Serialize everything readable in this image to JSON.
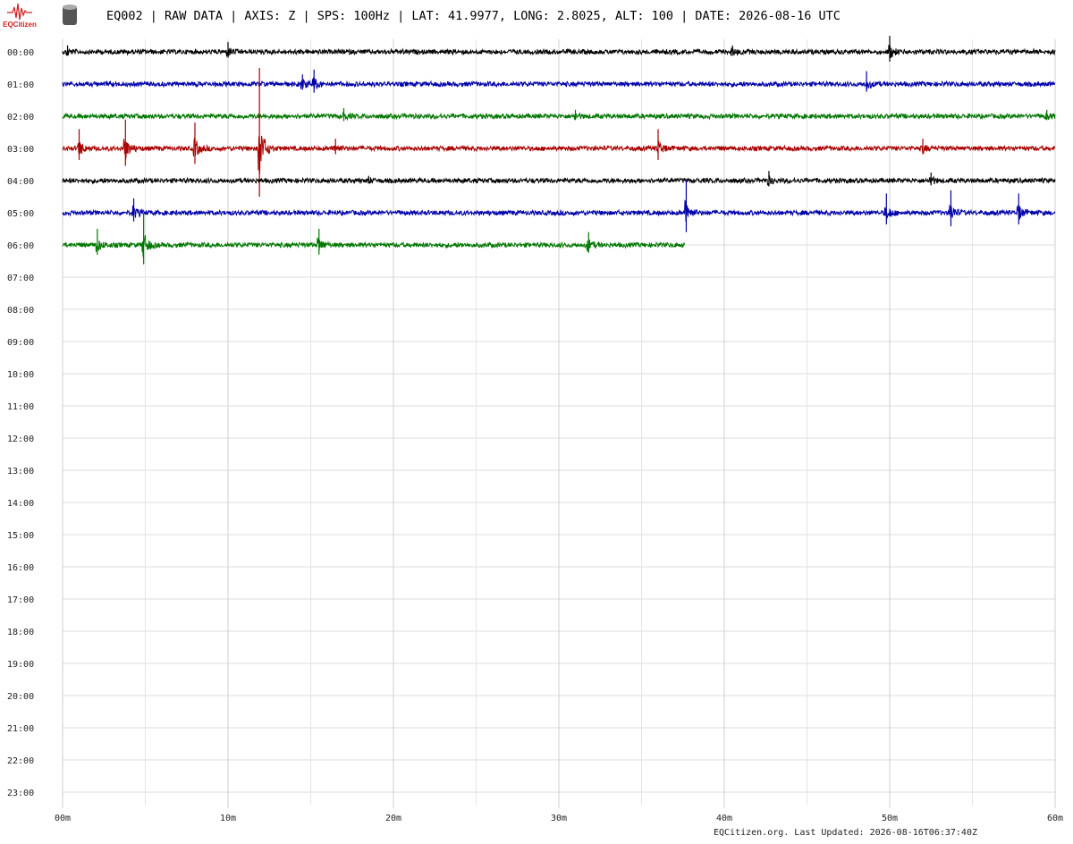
{
  "header": {
    "logo_text": "EQCitizen",
    "title": "EQ002 | RAW DATA | AXIS: Z | SPS: 100Hz | LAT: 41.9977, LONG: 2.8025, ALT: 100 | DATE: 2026-08-16 UTC"
  },
  "chart_data": {
    "type": "helicorder",
    "row_labels": [
      "00:00",
      "01:00",
      "02:00",
      "03:00",
      "04:00",
      "05:00",
      "06:00",
      "07:00",
      "08:00",
      "09:00",
      "10:00",
      "11:00",
      "12:00",
      "13:00",
      "14:00",
      "15:00",
      "16:00",
      "17:00",
      "18:00",
      "19:00",
      "20:00",
      "21:00",
      "22:00",
      "23:00"
    ],
    "xlim": [
      0,
      60
    ],
    "xticks": [
      {
        "value": 0,
        "label": "00m"
      },
      {
        "value": 10,
        "label": "10m"
      },
      {
        "value": 20,
        "label": "20m"
      },
      {
        "value": 30,
        "label": "30m"
      },
      {
        "value": 40,
        "label": "40m"
      },
      {
        "value": 50,
        "label": "50m"
      },
      {
        "value": 60,
        "label": "60m"
      }
    ],
    "minor_xticks": [
      5,
      15,
      25,
      35,
      45,
      55
    ],
    "grid": true,
    "traces": [
      {
        "row": 0,
        "color": "#000000",
        "end": 60,
        "events": [
          [
            0.3,
            0.2
          ],
          [
            10,
            0.3
          ],
          [
            40.5,
            0.2
          ],
          [
            50,
            0.5
          ]
        ]
      },
      {
        "row": 1,
        "color": "#0000aa",
        "end": 60,
        "events": [
          [
            14.5,
            0.3
          ],
          [
            15.2,
            0.45
          ],
          [
            48.6,
            0.4
          ]
        ]
      },
      {
        "row": 2,
        "color": "#007700",
        "end": 60,
        "events": [
          [
            17,
            0.25
          ],
          [
            31,
            0.2
          ],
          [
            59.5,
            0.2
          ]
        ]
      },
      {
        "row": 3,
        "color": "#aa0000",
        "end": 60,
        "events": [
          [
            1,
            0.6
          ],
          [
            3.8,
            0.9
          ],
          [
            8,
            0.8
          ],
          [
            11.9,
            2.5
          ],
          [
            16.5,
            0.3
          ],
          [
            36,
            0.6
          ],
          [
            52,
            0.3
          ]
        ]
      },
      {
        "row": 4,
        "color": "#000000",
        "end": 60,
        "events": [
          [
            18.5,
            0.15
          ],
          [
            42.7,
            0.3
          ],
          [
            52.5,
            0.25
          ]
        ]
      },
      {
        "row": 5,
        "color": "#0000aa",
        "end": 60,
        "events": [
          [
            4.3,
            0.45
          ],
          [
            37.7,
            1.0
          ],
          [
            49.8,
            0.6
          ],
          [
            53.7,
            0.7
          ],
          [
            57.8,
            0.6
          ]
        ]
      },
      {
        "row": 6,
        "color": "#007700",
        "end": 37.6,
        "events": [
          [
            2.1,
            0.5
          ],
          [
            4.9,
            1.0
          ],
          [
            15.5,
            0.5
          ],
          [
            31.8,
            0.4
          ]
        ]
      }
    ]
  },
  "footer": "EQCitizen.org. Last Updated: 2026-08-16T06:37:40Z"
}
